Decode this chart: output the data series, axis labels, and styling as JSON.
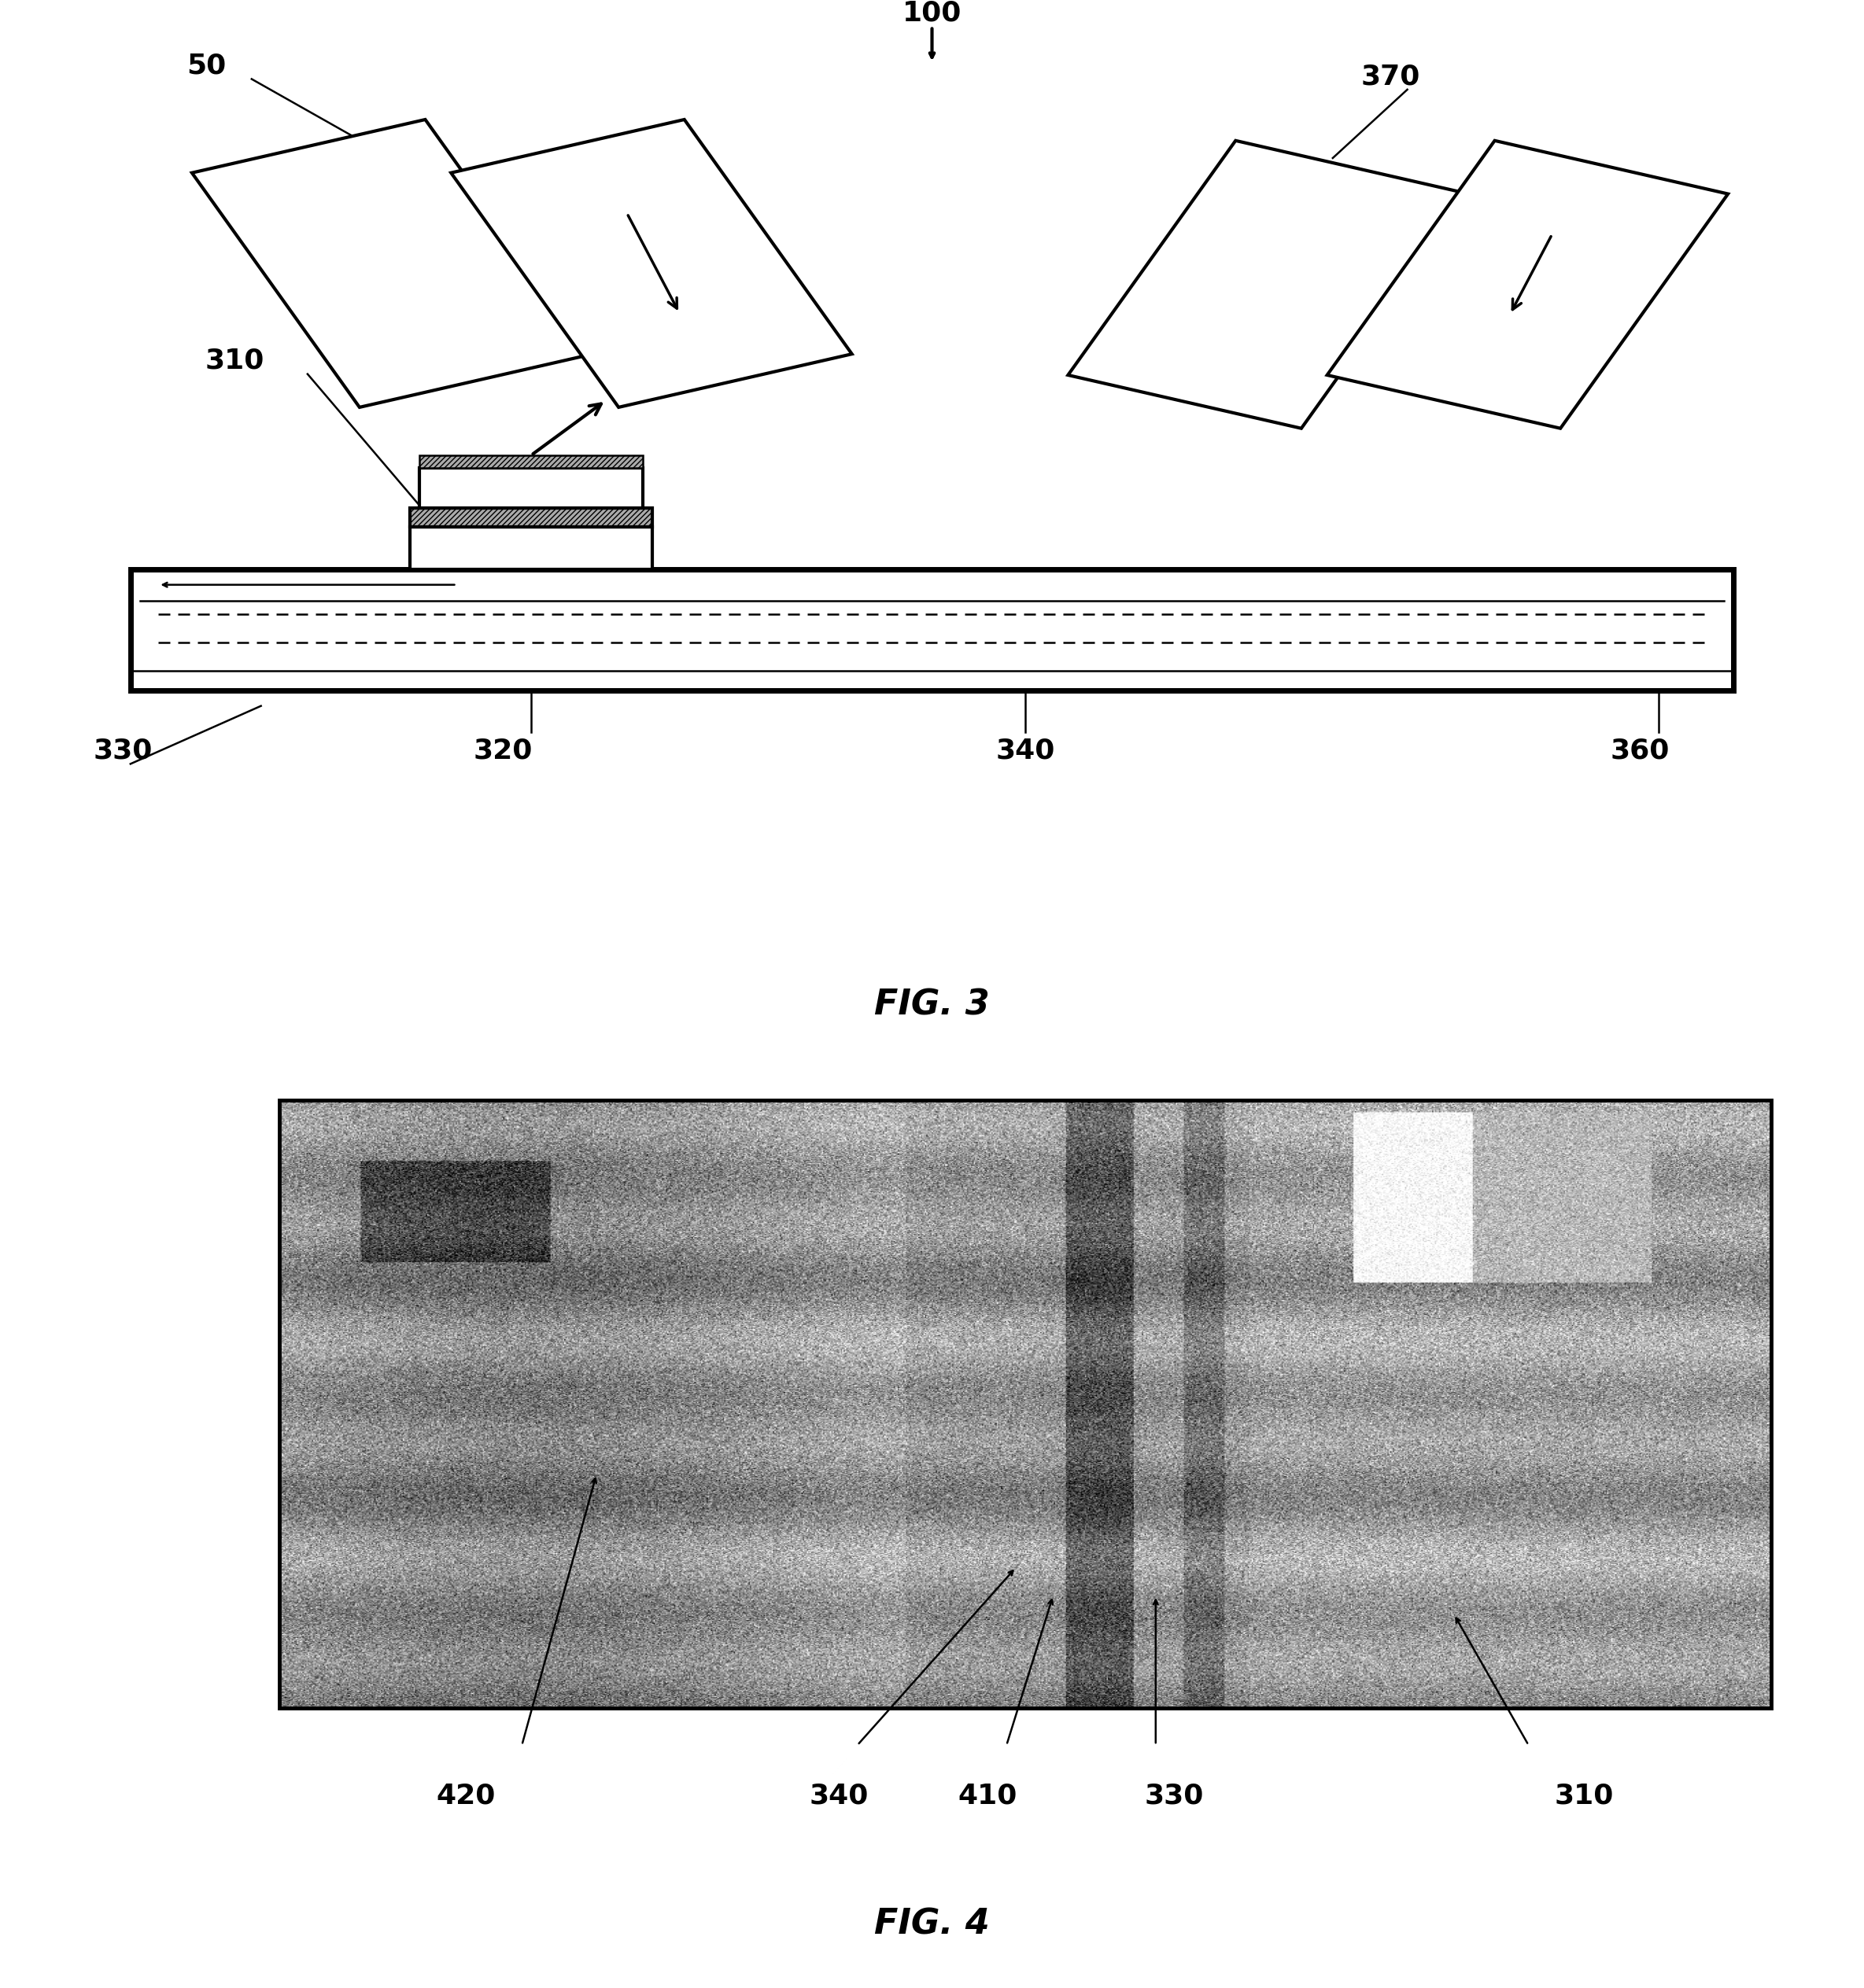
{
  "fig_width": 23.69,
  "fig_height": 25.28,
  "bg_color": "#ffffff",
  "fig3_title": "FIG. 3",
  "fig4_title": "FIG. 4",
  "label_100": "100",
  "label_50": "50",
  "label_370": "370",
  "label_310": "310",
  "label_320": "320",
  "label_330": "330",
  "label_340": "340",
  "label_360": "360",
  "label4_420": "420",
  "label4_340": "340",
  "label4_410": "410",
  "label4_330": "330",
  "label4_310": "310",
  "lw_main": 3.0,
  "lw_thick": 5.0,
  "lw_thin": 1.8,
  "fontsize_label": 26,
  "fontsize_title": 32
}
